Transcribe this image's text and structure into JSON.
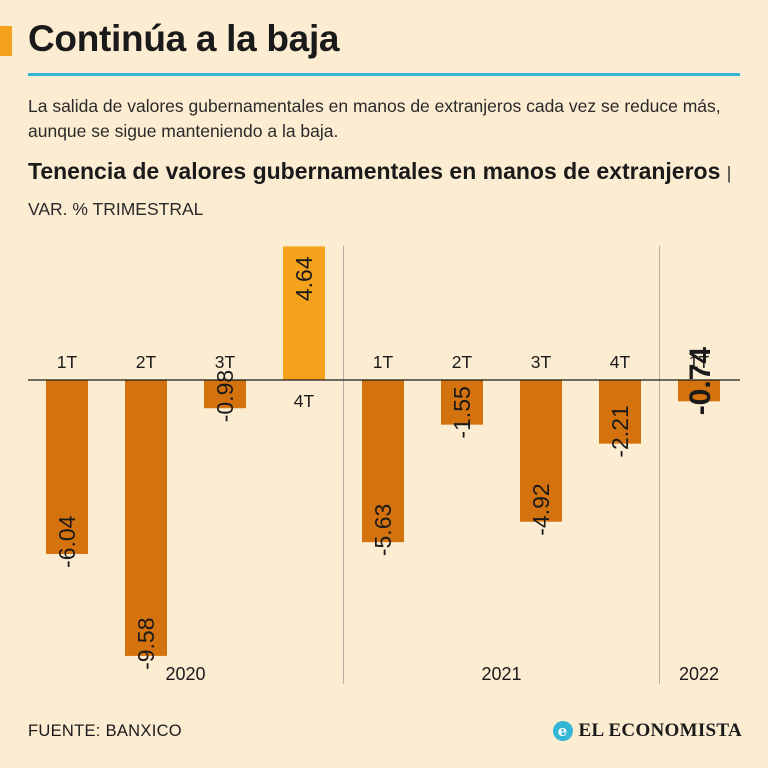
{
  "header": {
    "title": "Continúa a la baja",
    "subtitle": "La salida de valores gubernamentales en manos de extranjeros cada vez se reduce más, aunque se sigue manteniendo a la baja."
  },
  "chart_title": {
    "main": "Tenencia de valores gubernamentales en manos de extranjeros",
    "separator": "|",
    "unit": "VAR. % TRIMESTRAL"
  },
  "footer": {
    "source": "FUENTE: BANXICO",
    "brand": "EL ECONOMISTA",
    "brand_icon": "e-logo-icon"
  },
  "colors": {
    "background": "#fcecd2",
    "bar_negative": "#d4720e",
    "bar_positive": "#f4a21c",
    "accent_rule": "#33b5d6",
    "divider": "#b8b0a6"
  },
  "chart_data": {
    "type": "bar",
    "title": "Tenencia de valores gubernamentales en manos de extranjeros",
    "ylabel": "VAR. % TRIMESTRAL",
    "xlabel": "",
    "grid": false,
    "ylim": [
      -10.5,
      5
    ],
    "categories": [
      "1T",
      "2T",
      "3T",
      "4T",
      "1T",
      "2T",
      "3T",
      "4T",
      "1T"
    ],
    "values": [
      -6.04,
      -9.58,
      -0.98,
      4.64,
      -5.63,
      -1.55,
      -4.92,
      -2.21,
      -0.74
    ],
    "value_labels": [
      "-6.04",
      "-9.58",
      "-0.98",
      "4.64",
      "-5.63",
      "-1.55",
      "-4.92",
      "-2.21",
      "-0.74"
    ],
    "groups": [
      {
        "label": "2020",
        "start": 0,
        "end": 3
      },
      {
        "label": "2021",
        "start": 4,
        "end": 7
      },
      {
        "label": "2022",
        "start": 8,
        "end": 8
      }
    ],
    "highlight_index": 8
  }
}
